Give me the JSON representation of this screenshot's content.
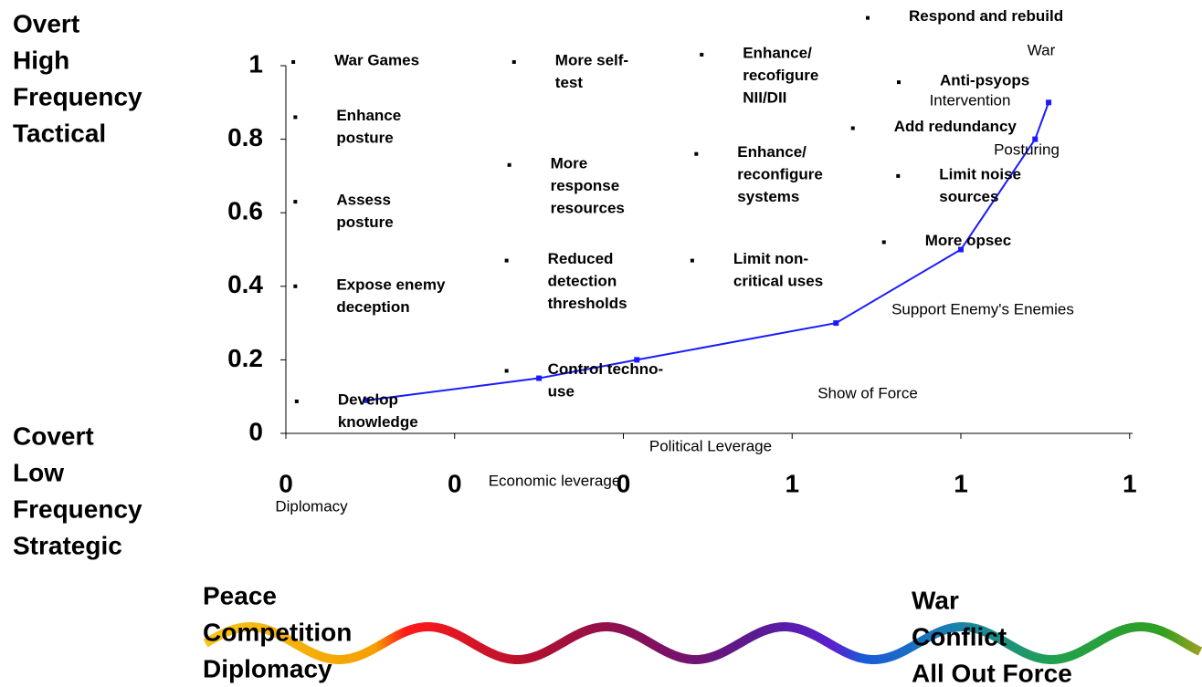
{
  "chart_data": {
    "type": "scatter",
    "ylim": [
      0,
      1.1
    ],
    "yticks": [
      0,
      0.2,
      0.4,
      0.6,
      0.8,
      1
    ],
    "xlim": [
      0,
      1.25
    ],
    "xticks": [
      0,
      {
        "value": 0.25,
        "label": "0"
      },
      {
        "value": 0.5,
        "label": "0"
      },
      {
        "value": 0.75,
        "label": "1"
      },
      1,
      {
        "value": 1.25,
        "label": "1"
      }
    ],
    "series": [
      {
        "type": "line",
        "color": "#1a1aff",
        "x": [
          0.12,
          0.375,
          0.52,
          0.815,
          1.0,
          1.11,
          1.13
        ],
        "values": [
          0.09,
          0.15,
          0.2,
          0.3,
          0.5,
          0.8,
          0.9
        ]
      },
      {
        "type": "scatter",
        "color": "#000000",
        "x": [
          0.011,
          0.014,
          0.014,
          0.014,
          0.016,
          0.338,
          0.331,
          0.327,
          0.327,
          0.616,
          0.608,
          0.602,
          0.862,
          0.908,
          0.84,
          0.907,
          0.886
        ],
        "values": [
          1.01,
          0.86,
          0.63,
          0.4,
          0.087,
          1.01,
          0.73,
          0.47,
          0.17,
          1.03,
          0.76,
          0.47,
          1.13,
          0.955,
          0.83,
          0.7,
          0.52
        ],
        "point_labels": [
          [
            "War Games"
          ],
          [
            "Enhance",
            "posture"
          ],
          [
            "Assess",
            "posture"
          ],
          [
            "Expose enemy",
            "deception"
          ],
          [
            "Develop",
            "knowledge"
          ],
          [
            "More self-",
            "test"
          ],
          [
            "More",
            "response",
            "resources"
          ],
          [
            "Reduced",
            "detection",
            "thresholds"
          ],
          [
            "Control techno-",
            "use"
          ],
          [
            "Enhance/",
            "recofigure",
            "NII/DII"
          ],
          [
            "Enhance/",
            "reconfigure",
            "systems"
          ],
          [
            "Limit non-",
            "critical uses"
          ],
          [
            "Respond and rebuild"
          ],
          [
            "Anti-psyops"
          ],
          [
            "Add redundancy"
          ],
          [
            "Limit noise",
            "sources"
          ],
          [
            "More opsec"
          ]
        ]
      }
    ],
    "annotations": [
      "War",
      "Intervention",
      "Posturing",
      "Support Enemy's Enemies",
      "Show of Force",
      "Political Leverage",
      "Economic leverage",
      "Diplomacy"
    ],
    "top_axis_label": [
      "Overt",
      "High",
      "Frequency",
      "Tactical"
    ],
    "bottom_axis_label": [
      "Covert",
      "Low",
      "Frequency",
      "Strategic"
    ],
    "left_scale_label": [
      "Peace",
      "Competition",
      "Diplomacy"
    ],
    "right_scale_label": [
      "War",
      "Conflict",
      "All Out Force"
    ]
  }
}
